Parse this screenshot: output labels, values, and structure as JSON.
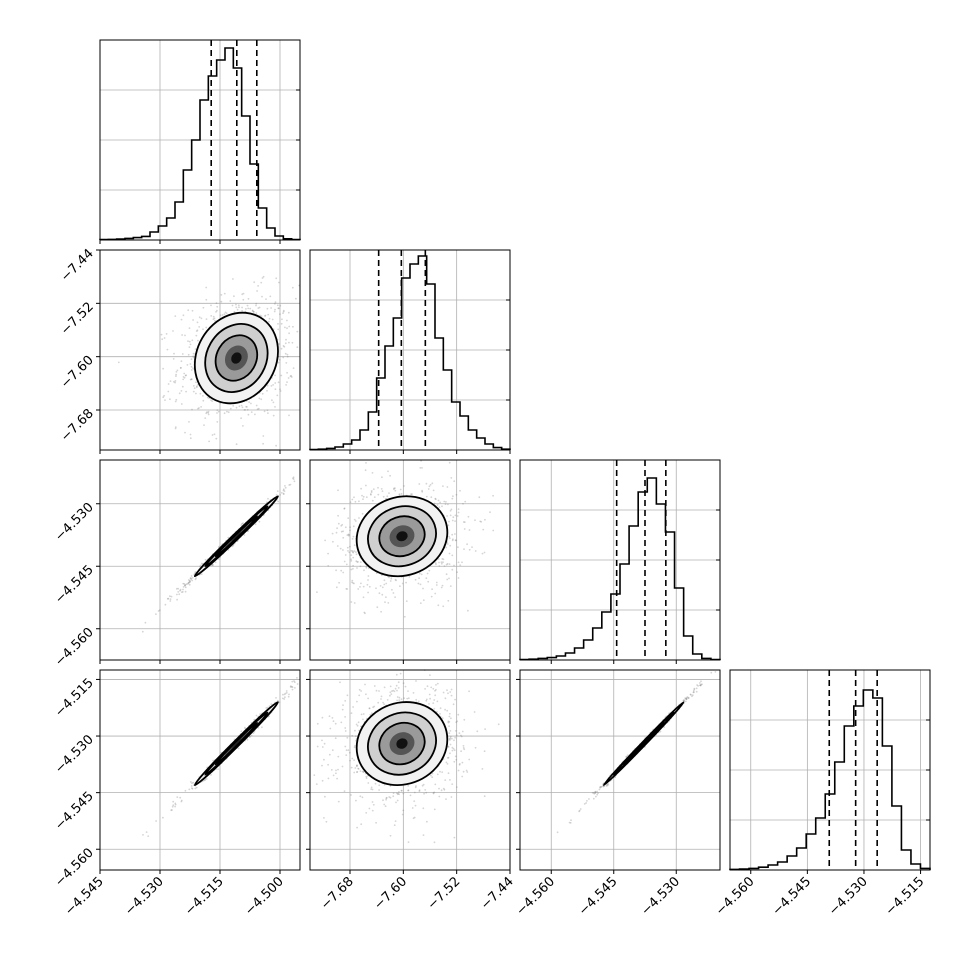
{
  "chart_data": {
    "type": "corner",
    "title": "",
    "parameters": [
      {
        "index": 0,
        "range": [
          -4.545,
          -4.495
        ],
        "ticks": [
          -4.545,
          -4.53,
          -4.515,
          -4.5
        ],
        "tick_labels": [
          "−4.545",
          "−4.530",
          "−4.515",
          "−4.500"
        ],
        "quantiles": [
          -4.5172,
          -4.5108,
          -4.5058
        ],
        "hist_bins": [
          0.002,
          0.003,
          0.005,
          0.008,
          0.012,
          0.018,
          0.04,
          0.07,
          0.11,
          0.19,
          0.35,
          0.5,
          0.7,
          0.82,
          0.9,
          0.96,
          0.86,
          0.62,
          0.38,
          0.16,
          0.06,
          0.02,
          0.006,
          0.002
        ],
        "center": -4.5109,
        "sigma": 0.0052
      },
      {
        "index": 1,
        "range": [
          -7.74,
          -7.44
        ],
        "ticks": [
          -7.68,
          -7.6,
          -7.52,
          -7.44
        ],
        "tick_labels": [
          "−7.68",
          "−7.60",
          "−7.52",
          "−7.44"
        ],
        "quantiles": [
          -7.637,
          -7.603,
          -7.567
        ],
        "hist_bins": [
          0.002,
          0.004,
          0.008,
          0.015,
          0.03,
          0.05,
          0.1,
          0.19,
          0.36,
          0.52,
          0.66,
          0.86,
          0.93,
          0.97,
          0.83,
          0.56,
          0.4,
          0.24,
          0.17,
          0.1,
          0.06,
          0.03,
          0.012,
          0.004
        ],
        "center": -7.602,
        "sigma": 0.034
      },
      {
        "index": 2,
        "range": [
          -4.5675,
          -4.5195
        ],
        "ticks": [
          -4.56,
          -4.545,
          -4.53
        ],
        "tick_labels": [
          "−4.560",
          "−4.545",
          "−4.530"
        ],
        "quantiles": [
          -4.5443,
          -4.5375,
          -4.5325
        ],
        "hist_bins": [
          0.002,
          0.004,
          0.008,
          0.012,
          0.02,
          0.035,
          0.06,
          0.1,
          0.16,
          0.24,
          0.33,
          0.48,
          0.67,
          0.84,
          0.91,
          0.78,
          0.64,
          0.36,
          0.12,
          0.03,
          0.008,
          0.002
        ],
        "center": -4.5378,
        "sigma": 0.0048
      },
      {
        "index": 3,
        "range": [
          -4.5655,
          -4.5125
        ],
        "ticks": [
          -4.56,
          -4.545,
          -4.53,
          -4.515
        ],
        "tick_labels": [
          "−4.560",
          "−4.545",
          "−4.530",
          "−4.515"
        ],
        "quantiles": [
          -4.5392,
          -4.5322,
          -4.5265
        ],
        "hist_bins": [
          0.003,
          0.005,
          0.008,
          0.014,
          0.025,
          0.04,
          0.07,
          0.11,
          0.18,
          0.26,
          0.38,
          0.54,
          0.72,
          0.82,
          0.9,
          0.86,
          0.62,
          0.32,
          0.1,
          0.03,
          0.008
        ],
        "center": -4.532,
        "sigma": 0.0055
      }
    ],
    "correlations": {
      "1_0": 0.15,
      "2_0": 0.995,
      "2_1": 0.1,
      "3_0": 0.995,
      "3_1": 0.1,
      "3_2": 0.998
    },
    "contour_levels": [
      "0.5σ",
      "1σ",
      "1.5σ",
      "2σ"
    ],
    "grid": true
  }
}
